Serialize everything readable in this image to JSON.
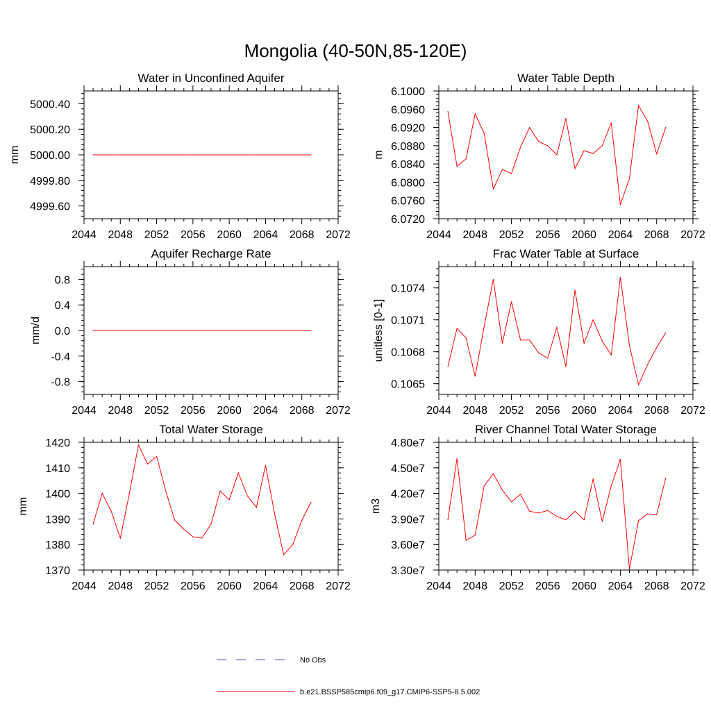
{
  "main_title": "Mongolia (40-50N,85-120E)",
  "colors": {
    "model": "#ff0000",
    "obs": "#4a4ac8",
    "axis": "#000000"
  },
  "legend": [
    {
      "label": "No Obs",
      "style": "dashed",
      "color": "#4a4ac8"
    },
    {
      "label": "b.e21.BSSP585cmip6.f09_g17.CMIP6-SSP5-8.5.002",
      "style": "solid",
      "color": "#ff0000"
    }
  ],
  "chart_data": [
    {
      "type": "line",
      "title": "Water in Unconfined Aquifer",
      "ylabel": "mm",
      "xlim": [
        2044,
        2072
      ],
      "ylim": [
        4999.5,
        5000.5
      ],
      "xticks": [
        "2044",
        "2048",
        "2052",
        "2056",
        "2060",
        "2064",
        "2068",
        "2072"
      ],
      "yticks": [
        {
          "value": 4999.6,
          "label": "4999.60"
        },
        {
          "value": 4999.8,
          "label": "4999.80"
        },
        {
          "value": 5000.0,
          "label": "5000.00"
        },
        {
          "value": 5000.2,
          "label": "5000.20"
        },
        {
          "value": 5000.4,
          "label": "5000.40"
        }
      ],
      "series": [
        {
          "name": "b.e21.BSSP585cmip6.f09_g17.CMIP6-SSP5-8.5.002",
          "x": [
            2045,
            2046,
            2047,
            2048,
            2049,
            2050,
            2051,
            2052,
            2053,
            2054,
            2055,
            2056,
            2057,
            2058,
            2059,
            2060,
            2061,
            2062,
            2063,
            2064,
            2065,
            2066,
            2067,
            2068,
            2069
          ],
          "values": [
            5000,
            5000,
            5000,
            5000,
            5000,
            5000,
            5000,
            5000,
            5000,
            5000,
            5000,
            5000,
            5000,
            5000,
            5000,
            5000,
            5000,
            5000,
            5000,
            5000,
            5000,
            5000,
            5000,
            5000,
            5000
          ]
        }
      ]
    },
    {
      "type": "line",
      "title": "Water Table Depth",
      "ylabel": "m",
      "xlim": [
        2044,
        2072
      ],
      "ylim": [
        6.072,
        6.1
      ],
      "xticks": [
        "2044",
        "2048",
        "2052",
        "2056",
        "2060",
        "2064",
        "2068",
        "2072"
      ],
      "yticks": [
        {
          "value": 6.072,
          "label": "6.0720"
        },
        {
          "value": 6.076,
          "label": "6.0760"
        },
        {
          "value": 6.08,
          "label": "6.0800"
        },
        {
          "value": 6.084,
          "label": "6.0840"
        },
        {
          "value": 6.088,
          "label": "6.0880"
        },
        {
          "value": 6.092,
          "label": "6.0920"
        },
        {
          "value": 6.096,
          "label": "6.0960"
        },
        {
          "value": 6.1,
          "label": "6.1000"
        }
      ],
      "series": [
        {
          "name": "b.e21.BSSP585cmip6.f09_g17.CMIP6-SSP5-8.5.002",
          "x": [
            2045,
            2046,
            2047,
            2048,
            2049,
            2050,
            2051,
            2052,
            2053,
            2054,
            2055,
            2056,
            2057,
            2058,
            2059,
            2060,
            2061,
            2062,
            2063,
            2064,
            2065,
            2066,
            2067,
            2068,
            2069
          ],
          "values": [
            6.0955,
            6.0835,
            6.0851,
            6.095,
            6.0907,
            6.0785,
            6.0828,
            6.0819,
            6.0877,
            6.092,
            6.0889,
            6.088,
            6.086,
            6.094,
            6.083,
            6.0869,
            6.0863,
            6.088,
            6.093,
            6.0751,
            6.0808,
            6.0968,
            6.0934,
            6.0862,
            6.092
          ]
        }
      ]
    },
    {
      "type": "line",
      "title": "Aquifer Recharge Rate",
      "ylabel": "mm/d",
      "xlim": [
        2044,
        2072
      ],
      "ylim": [
        -1.0,
        1.0
      ],
      "xticks": [
        "2044",
        "2048",
        "2052",
        "2056",
        "2060",
        "2064",
        "2068",
        "2072"
      ],
      "yticks": [
        {
          "value": -0.8,
          "label": "-0.8"
        },
        {
          "value": -0.4,
          "label": "-0.4"
        },
        {
          "value": 0.0,
          "label": "0.0"
        },
        {
          "value": 0.4,
          "label": "0.4"
        },
        {
          "value": 0.8,
          "label": "0.8"
        }
      ],
      "series": [
        {
          "name": "b.e21.BSSP585cmip6.f09_g17.CMIP6-SSP5-8.5.002",
          "x": [
            2045,
            2046,
            2047,
            2048,
            2049,
            2050,
            2051,
            2052,
            2053,
            2054,
            2055,
            2056,
            2057,
            2058,
            2059,
            2060,
            2061,
            2062,
            2063,
            2064,
            2065,
            2066,
            2067,
            2068,
            2069
          ],
          "values": [
            0,
            0,
            0,
            0,
            0,
            0,
            0,
            0,
            0,
            0,
            0,
            0,
            0,
            0,
            0,
            0,
            0,
            0,
            0,
            0,
            0,
            0,
            0,
            0,
            0
          ]
        }
      ]
    },
    {
      "type": "line",
      "title": "Frac Water Table at Surface",
      "ylabel": "unitless [0-1]",
      "xlim": [
        2044,
        2072
      ],
      "ylim": [
        0.1064,
        0.1076
      ],
      "xticks": [
        "2044",
        "2048",
        "2052",
        "2056",
        "2060",
        "2064",
        "2068",
        "2072"
      ],
      "yticks": [
        {
          "value": 0.1065,
          "label": "0.1065"
        },
        {
          "value": 0.1068,
          "label": "0.1068"
        },
        {
          "value": 0.1071,
          "label": "0.1071"
        },
        {
          "value": 0.1074,
          "label": "0.1074"
        }
      ],
      "series": [
        {
          "name": "b.e21.BSSP585cmip6.f09_g17.CMIP6-SSP5-8.5.002",
          "x": [
            2045,
            2046,
            2047,
            2048,
            2049,
            2050,
            2051,
            2052,
            2053,
            2054,
            2055,
            2056,
            2057,
            2058,
            2059,
            2060,
            2061,
            2062,
            2063,
            2064,
            2065,
            2066,
            2067,
            2068,
            2069
          ],
          "values": [
            0.10666,
            0.10702,
            0.10693,
            0.10657,
            0.10704,
            0.10748,
            0.10688,
            0.10727,
            0.10691,
            0.10691,
            0.10679,
            0.10674,
            0.10703,
            0.10666,
            0.10738,
            0.10688,
            0.1071,
            0.1069,
            0.10677,
            0.1075,
            0.10686,
            0.10649,
            0.10668,
            0.10684,
            0.10698
          ]
        }
      ]
    },
    {
      "type": "line",
      "title": "Total Water Storage",
      "ylabel": "mm",
      "xlim": [
        2044,
        2072
      ],
      "ylim": [
        1370,
        1420
      ],
      "xticks": [
        "2044",
        "2048",
        "2052",
        "2056",
        "2060",
        "2064",
        "2068",
        "2072"
      ],
      "yticks": [
        {
          "value": 1370,
          "label": "1370"
        },
        {
          "value": 1380,
          "label": "1380"
        },
        {
          "value": 1390,
          "label": "1390"
        },
        {
          "value": 1400,
          "label": "1400"
        },
        {
          "value": 1410,
          "label": "1410"
        },
        {
          "value": 1420,
          "label": "1420"
        }
      ],
      "series": [
        {
          "name": "b.e21.BSSP585cmip6.f09_g17.CMIP6-SSP5-8.5.002",
          "x": [
            2045,
            2046,
            2047,
            2048,
            2049,
            2050,
            2051,
            2052,
            2053,
            2054,
            2055,
            2056,
            2057,
            2058,
            2059,
            2060,
            2061,
            2062,
            2063,
            2064,
            2065,
            2066,
            2067,
            2068,
            2069
          ],
          "values": [
            1388,
            1400,
            1393,
            1382.5,
            1400,
            1419,
            1411.5,
            1414.5,
            1401,
            1389.5,
            1386,
            1383,
            1382.5,
            1388,
            1401,
            1397.5,
            1408,
            1399,
            1394.5,
            1411,
            1392,
            1376,
            1380,
            1389.5,
            1396.5
          ]
        }
      ]
    },
    {
      "type": "line",
      "title": "River Channel Total Water Storage",
      "ylabel": "m3",
      "xlim": [
        2044,
        2072
      ],
      "ylim": [
        33000000,
        48000000
      ],
      "xticks": [
        "2044",
        "2048",
        "2052",
        "2056",
        "2060",
        "2064",
        "2068",
        "2072"
      ],
      "yticks": [
        {
          "value": 33000000,
          "label": "3.30e7"
        },
        {
          "value": 36000000,
          "label": "3.60e7"
        },
        {
          "value": 39000000,
          "label": "3.90e7"
        },
        {
          "value": 42000000,
          "label": "4.20e7"
        },
        {
          "value": 45000000,
          "label": "4.50e7"
        },
        {
          "value": 48000000,
          "label": "4.80e7"
        }
      ],
      "series": [
        {
          "name": "b.e21.BSSP585cmip6.f09_g17.CMIP6-SSP5-8.5.002",
          "x": [
            2045,
            2046,
            2047,
            2048,
            2049,
            2050,
            2051,
            2052,
            2053,
            2054,
            2055,
            2056,
            2057,
            2058,
            2059,
            2060,
            2061,
            2062,
            2063,
            2064,
            2065,
            2066,
            2067,
            2068,
            2069
          ],
          "values": [
            38900000,
            46100000,
            36500000,
            37100000,
            42900000,
            44300000,
            42400000,
            41000000,
            41900000,
            39900000,
            39700000,
            40000000,
            39300000,
            38900000,
            39900000,
            38900000,
            43700000,
            38700000,
            42900000,
            46000000,
            33100000,
            38800000,
            39600000,
            39500000,
            43800000
          ]
        }
      ]
    }
  ]
}
